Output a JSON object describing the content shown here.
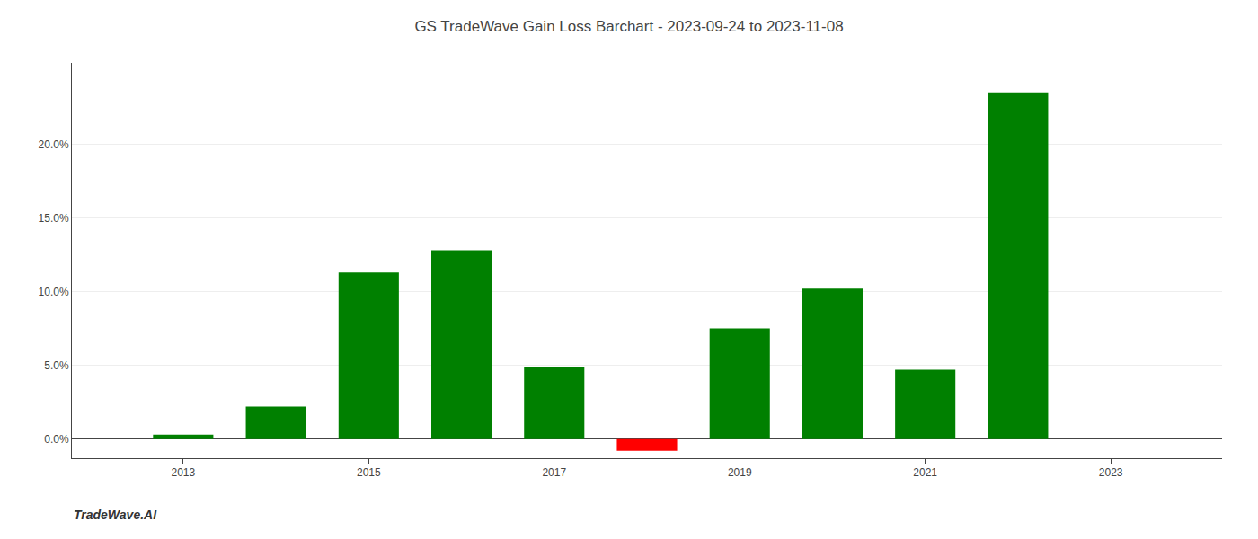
{
  "chart_data": {
    "type": "bar",
    "title": "GS TradeWave Gain Loss Barchart - 2023-09-24 to 2023-11-08",
    "annotations": [
      "TradeWave.AI"
    ],
    "x": [
      2013,
      2014,
      2015,
      2016,
      2017,
      2018,
      2019,
      2020,
      2021,
      2022
    ],
    "values": [
      0.003,
      0.022,
      0.113,
      0.128,
      0.049,
      -0.008,
      0.075,
      0.102,
      0.047,
      0.235
    ],
    "colors": [
      "#008000",
      "#008000",
      "#008000",
      "#008000",
      "#008000",
      "#ff0000",
      "#008000",
      "#008000",
      "#008000",
      "#008000"
    ],
    "xlim": [
      2011.8,
      2024.2
    ],
    "xticks": [
      2013,
      2015,
      2017,
      2019,
      2021,
      2023
    ],
    "ylim": [
      -0.013,
      0.255
    ],
    "yticks": [
      {
        "value": 0.0,
        "label": "0.0%"
      },
      {
        "value": 0.05,
        "label": "5.0%"
      },
      {
        "value": 0.1,
        "label": "10.0%"
      },
      {
        "value": 0.15,
        "label": "15.0%"
      },
      {
        "value": 0.2,
        "label": "20.0%"
      }
    ],
    "grid": true
  }
}
